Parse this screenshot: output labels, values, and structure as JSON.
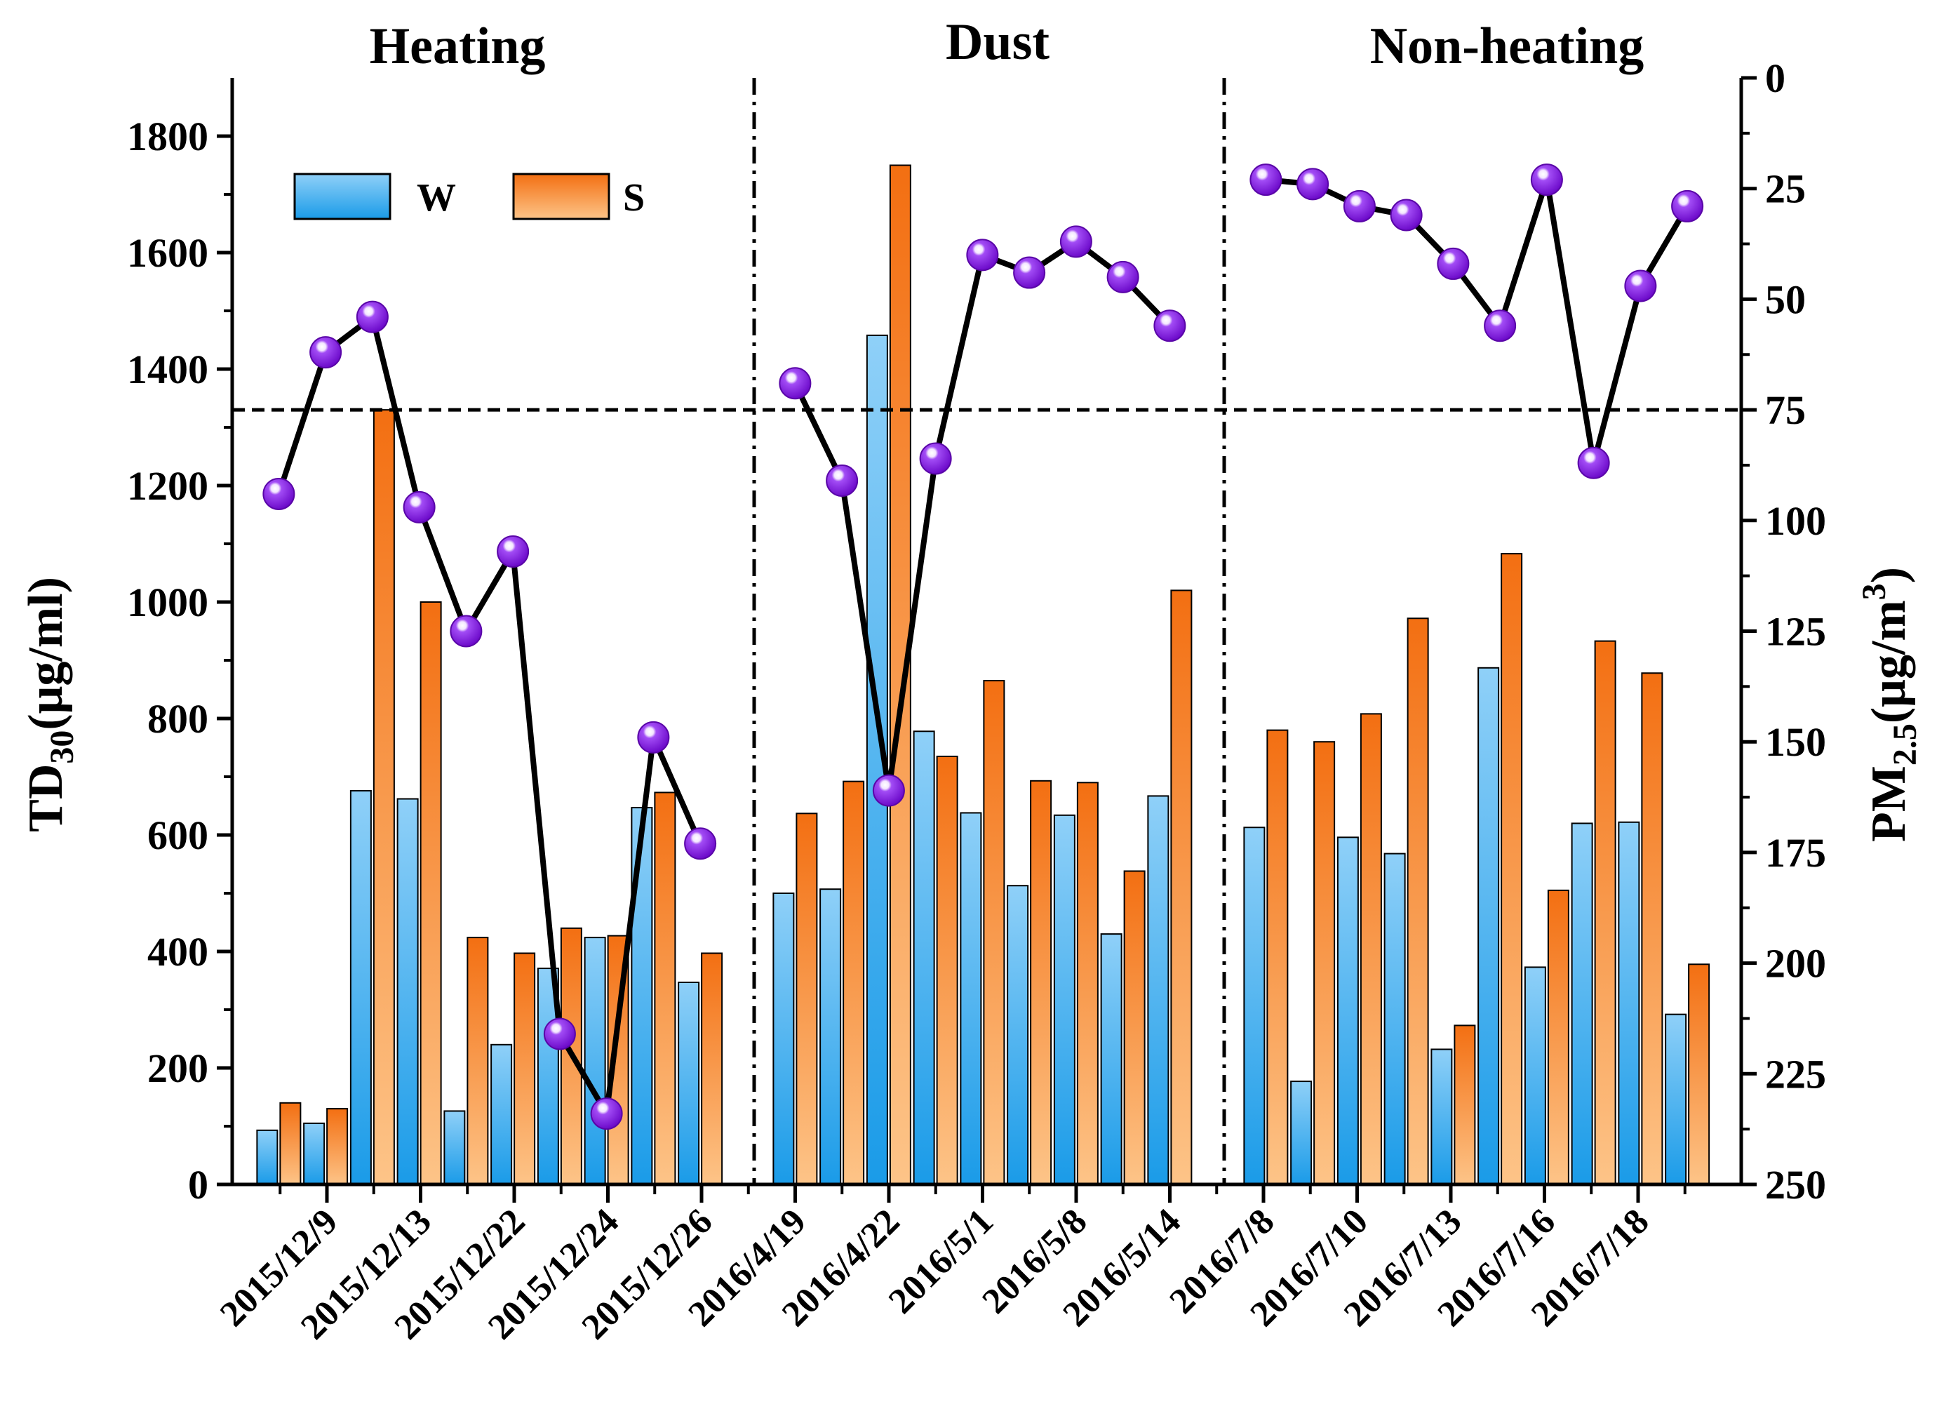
{
  "chart_data": {
    "type": "bar+line",
    "title": "",
    "regions": [
      "Heating",
      "Dust",
      "Non-heating"
    ],
    "x_tick_labels": [
      "2015/12/9",
      "2015/12/13",
      "2015/12/22",
      "2015/12/24",
      "2015/12/26",
      "2016/4/19",
      "2016/4/22",
      "2016/5/1",
      "2016/5/8",
      "2016/5/14",
      "2016/7/8",
      "2016/7/10",
      "2016/7/13",
      "2016/7/16",
      "2016/7/18"
    ],
    "y_left": {
      "label_main": "TD",
      "label_sub": "30",
      "label_rest": "(μg/ml)",
      "min": 0,
      "max": 1900,
      "ticks": [
        0,
        200,
        400,
        600,
        800,
        1000,
        1200,
        1400,
        1600,
        1800
      ]
    },
    "y_right": {
      "label_main": "PM",
      "label_sub": "2.5",
      "label_rest": "(μg/m",
      "label_sup": "3",
      "label_end": ")",
      "min": 0,
      "max": 250,
      "inverted": true,
      "ticks": [
        0,
        25,
        50,
        75,
        100,
        125,
        150,
        175,
        200,
        225,
        250
      ]
    },
    "legend": [
      {
        "name": "W",
        "color": "#1a9be8"
      },
      {
        "name": "S",
        "color": "#f37b1d"
      }
    ],
    "series": [
      {
        "name": "W",
        "axis": "left",
        "type": "bar",
        "values": [
          93,
          105,
          676,
          662,
          126,
          240,
          371,
          424,
          647,
          347,
          500,
          507,
          1458,
          778,
          638,
          513,
          634,
          430,
          667,
          613,
          177,
          596,
          568,
          232,
          887,
          373,
          620,
          622,
          292
        ]
      },
      {
        "name": "S",
        "axis": "left",
        "type": "bar",
        "values": [
          140,
          130,
          1330,
          1000,
          424,
          397,
          440,
          427,
          673,
          397,
          637,
          692,
          1750,
          735,
          865,
          693,
          690,
          538,
          1020,
          780,
          760,
          808,
          972,
          273,
          1083,
          505,
          933,
          878,
          378
        ]
      },
      {
        "name": "PM2.5",
        "axis": "right",
        "type": "line",
        "segments": [
          {
            "region": "Heating",
            "start_slot": 0,
            "values": [
              94,
              62,
              54,
              97,
              125,
              107,
              216,
              234,
              149,
              173
            ]
          },
          {
            "region": "Dust",
            "start_slot": 10,
            "values": [
              69,
              91,
              161,
              86,
              40,
              44,
              37,
              45,
              56
            ]
          },
          {
            "region": "Non-heating",
            "start_slot": 19,
            "values": [
              23,
              24,
              29,
              31,
              42,
              56,
              23,
              87,
              47,
              29
            ]
          }
        ]
      }
    ],
    "reference_line": {
      "axis": "right",
      "value": 75
    }
  }
}
